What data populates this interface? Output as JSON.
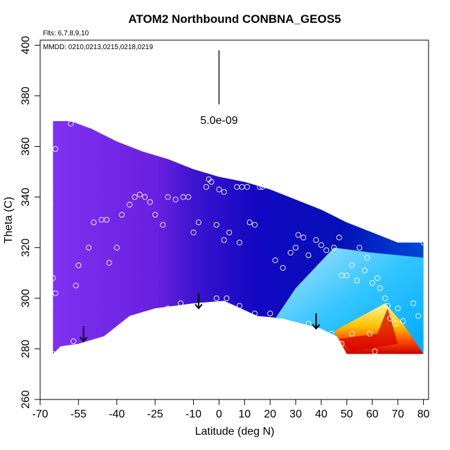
{
  "chart_data": {
    "type": "heatmap",
    "title": "ATOM2 Northbound CONBNA_GEOS5",
    "flights_label": "Flts: 6,7,8,9,10",
    "dates_label": "MMDD: 0210,0213,0215,0218,0219",
    "xlabel": "Latitude (deg N)",
    "ylabel": "Theta (C)",
    "xlim": [
      -70,
      82
    ],
    "ylim": [
      260,
      402
    ],
    "xticks": [
      -70,
      -55,
      -40,
      -25,
      -10,
      0,
      10,
      20,
      30,
      40,
      50,
      60,
      70,
      80
    ],
    "yticks": [
      260,
      280,
      300,
      320,
      340,
      360,
      380,
      400
    ],
    "scale_bar": {
      "label": "5.0e-09",
      "x": 0,
      "y_top": 398,
      "y_bottom": 384
    },
    "colors": {
      "low": "#7a2ff0",
      "mid": "#1010c8",
      "ice": "#9fdcff",
      "cyan": "#00bfff",
      "yellow": "#ffee00",
      "red": "#d40000"
    },
    "upper_boundary": [
      [
        -65,
        370
      ],
      [
        -58,
        370
      ],
      [
        -50,
        367
      ],
      [
        -40,
        362
      ],
      [
        -30,
        358
      ],
      [
        -20,
        355
      ],
      [
        -10,
        351
      ],
      [
        0,
        348
      ],
      [
        10,
        346
      ],
      [
        20,
        343
      ],
      [
        30,
        339
      ],
      [
        40,
        335
      ],
      [
        50,
        330
      ],
      [
        60,
        326
      ],
      [
        70,
        322
      ],
      [
        80,
        322
      ]
    ],
    "lower_boundary": [
      [
        -65,
        278
      ],
      [
        -62,
        281
      ],
      [
        -55,
        282
      ],
      [
        -45,
        285
      ],
      [
        -35,
        293
      ],
      [
        -25,
        296
      ],
      [
        -10,
        298
      ],
      [
        2,
        299
      ],
      [
        15,
        293
      ],
      [
        25,
        292
      ],
      [
        40,
        288
      ],
      [
        50,
        283
      ],
      [
        60,
        279
      ],
      [
        70,
        278
      ],
      [
        80,
        278
      ]
    ],
    "high_region": [
      [
        45,
        287
      ],
      [
        65,
        298
      ],
      [
        72,
        290
      ],
      [
        80,
        278
      ],
      [
        50,
        278
      ]
    ],
    "core_region": [
      [
        47,
        284
      ],
      [
        62,
        286
      ],
      [
        66,
        296
      ],
      [
        70,
        282
      ],
      [
        52,
        279
      ]
    ],
    "arrows": [
      [
        -53,
        289
      ],
      [
        -8,
        302
      ],
      [
        38,
        294
      ]
    ],
    "observations": [
      [
        -65,
        278
      ],
      [
        -66,
        297
      ],
      [
        -64,
        302
      ],
      [
        -65,
        308
      ],
      [
        -66,
        337
      ],
      [
        -66,
        343
      ],
      [
        -64,
        359
      ],
      [
        -58,
        369
      ],
      [
        -55,
        370
      ],
      [
        -57,
        283
      ],
      [
        -56,
        305
      ],
      [
        -55,
        313
      ],
      [
        -51,
        320
      ],
      [
        -49,
        330
      ],
      [
        -46,
        331
      ],
      [
        -44,
        331
      ],
      [
        -43,
        314
      ],
      [
        -42,
        286
      ],
      [
        -40,
        320
      ],
      [
        -38,
        333
      ],
      [
        -35,
        337
      ],
      [
        -33,
        340
      ],
      [
        -31,
        341
      ],
      [
        -29,
        340
      ],
      [
        -27,
        338
      ],
      [
        -25,
        333
      ],
      [
        -22,
        329
      ],
      [
        -20,
        296
      ],
      [
        -20,
        340
      ],
      [
        -17,
        339
      ],
      [
        -14,
        340
      ],
      [
        -12,
        340
      ],
      [
        -10,
        326
      ],
      [
        -8,
        330
      ],
      [
        -5,
        344
      ],
      [
        -3,
        346
      ],
      [
        -4,
        347
      ],
      [
        0,
        343
      ],
      [
        2,
        342
      ],
      [
        -1,
        329
      ],
      [
        2,
        323
      ],
      [
        4,
        326
      ],
      [
        7,
        344
      ],
      [
        8,
        322
      ],
      [
        9,
        344
      ],
      [
        11,
        344
      ],
      [
        12,
        330
      ],
      [
        14,
        329
      ],
      [
        16,
        344
      ],
      [
        17,
        344
      ],
      [
        -15,
        298
      ],
      [
        -1,
        300
      ],
      [
        3,
        300
      ],
      [
        8,
        297
      ],
      [
        14,
        294
      ],
      [
        20,
        294
      ],
      [
        22,
        315
      ],
      [
        25,
        312
      ],
      [
        28,
        318
      ],
      [
        30,
        320
      ],
      [
        31,
        325
      ],
      [
        33,
        324
      ],
      [
        35,
        317
      ],
      [
        38,
        323
      ],
      [
        40,
        321
      ],
      [
        42,
        319
      ],
      [
        45,
        320
      ],
      [
        47,
        324
      ],
      [
        48,
        309
      ],
      [
        50,
        309
      ],
      [
        52,
        313
      ],
      [
        54,
        307
      ],
      [
        55,
        320
      ],
      [
        57,
        311
      ],
      [
        58,
        316
      ],
      [
        60,
        306
      ],
      [
        62,
        308
      ],
      [
        63,
        304
      ],
      [
        65,
        300
      ],
      [
        66,
        297
      ],
      [
        67,
        292
      ],
      [
        69,
        290
      ],
      [
        70,
        296
      ],
      [
        72,
        291
      ],
      [
        76,
        298
      ],
      [
        78,
        293
      ],
      [
        80,
        322
      ],
      [
        80,
        277
      ],
      [
        35,
        290
      ],
      [
        41,
        285
      ],
      [
        44,
        286
      ],
      [
        48,
        282
      ],
      [
        52,
        286
      ],
      [
        59,
        286
      ],
      [
        61,
        279
      ]
    ]
  }
}
